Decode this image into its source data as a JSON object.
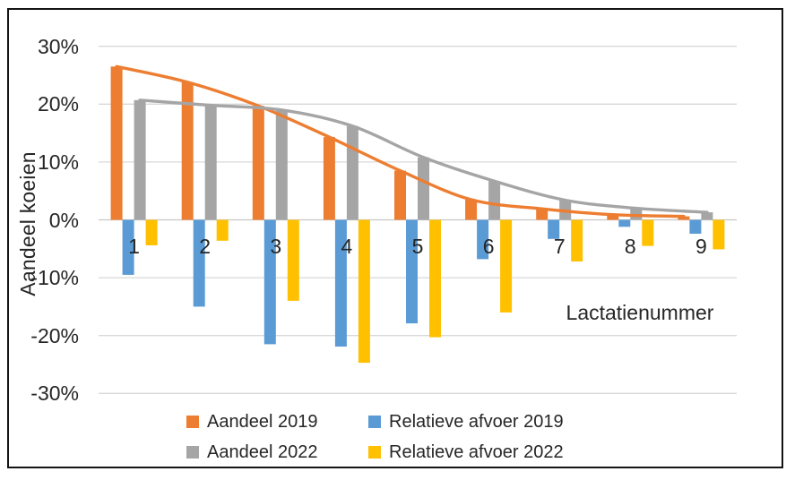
{
  "frame": {
    "background": "#ffffff",
    "border_color": "#141414"
  },
  "chart_data": {
    "type": "bar",
    "title": "",
    "xlabel": "Lactatienummer",
    "ylabel": "Aandeel koeien",
    "categories": [
      "1",
      "2",
      "3",
      "4",
      "5",
      "6",
      "7",
      "8",
      "9"
    ],
    "series": [
      {
        "name": "Aandeel 2019",
        "color": "#ED7D31",
        "render": "bar+smooth-line",
        "values": [
          26.5,
          23.8,
          19.7,
          14.3,
          8.5,
          3.5,
          1.9,
          0.9,
          0.6
        ]
      },
      {
        "name": "Relatieve afvoer 2019",
        "color": "#5B9BD5",
        "render": "bar",
        "values": [
          -9.5,
          -15.0,
          -21.5,
          -21.9,
          -17.9,
          -6.8,
          -3.3,
          -1.2,
          -2.4
        ]
      },
      {
        "name": "Aandeel 2022",
        "color": "#A5A5A5",
        "render": "bar+smooth-line",
        "values": [
          20.7,
          19.8,
          19.0,
          16.2,
          10.8,
          6.7,
          3.4,
          2.0,
          1.3
        ]
      },
      {
        "name": "Relatieve afvoer 2022",
        "color": "#FFC000",
        "render": "bar",
        "values": [
          -4.4,
          -3.6,
          -14.0,
          -24.7,
          -20.3,
          -16.0,
          -7.2,
          -4.5,
          -5.1
        ]
      }
    ],
    "y_ticks": [
      {
        "label": "30%",
        "value": 30
      },
      {
        "label": "20%",
        "value": 20
      },
      {
        "label": "10%",
        "value": 10
      },
      {
        "label": "0%",
        "value": 0
      },
      {
        "label": "-10%",
        "value": -10
      },
      {
        "label": "-20%",
        "value": -20
      },
      {
        "label": "-30%",
        "value": -30
      }
    ],
    "ylim": [
      -30,
      30
    ],
    "grid": true,
    "gridline_color": "#D9D9D9",
    "zero_axis_color": "#C6C6C6",
    "legend_position": "bottom",
    "legend_rows": [
      [
        "Aandeel 2019",
        "Relatieve afvoer 2019"
      ],
      [
        "Aandeel 2022",
        "Relatieve afvoer 2022"
      ]
    ]
  }
}
